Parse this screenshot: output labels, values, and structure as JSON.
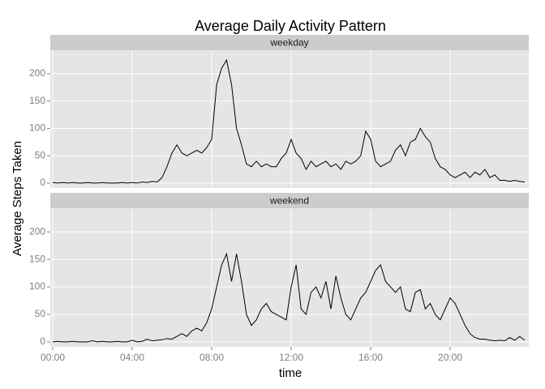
{
  "chart_data": {
    "type": "line",
    "title": "Average Daily Activity Pattern",
    "x_label": "time",
    "y_label": "Average Steps Taken",
    "facet": true,
    "grid": true,
    "color": "#000000",
    "x": [
      "00:00",
      "00:15",
      "00:30",
      "00:45",
      "01:00",
      "01:15",
      "01:30",
      "01:45",
      "02:00",
      "02:15",
      "02:30",
      "02:45",
      "03:00",
      "03:15",
      "03:30",
      "03:45",
      "04:00",
      "04:15",
      "04:30",
      "04:45",
      "05:00",
      "05:15",
      "05:30",
      "05:45",
      "06:00",
      "06:15",
      "06:30",
      "06:45",
      "07:00",
      "07:15",
      "07:30",
      "07:45",
      "08:00",
      "08:15",
      "08:30",
      "08:45",
      "09:00",
      "09:15",
      "09:30",
      "09:45",
      "10:00",
      "10:15",
      "10:30",
      "10:45",
      "11:00",
      "11:15",
      "11:30",
      "11:45",
      "12:00",
      "12:15",
      "12:30",
      "12:45",
      "13:00",
      "13:15",
      "13:30",
      "13:45",
      "14:00",
      "14:15",
      "14:30",
      "14:45",
      "15:00",
      "15:15",
      "15:30",
      "15:45",
      "16:00",
      "16:15",
      "16:30",
      "16:45",
      "17:00",
      "17:15",
      "17:30",
      "17:45",
      "18:00",
      "18:15",
      "18:30",
      "18:45",
      "19:00",
      "19:15",
      "19:30",
      "19:45",
      "20:00",
      "20:15",
      "20:30",
      "20:45",
      "21:00",
      "21:15",
      "21:30",
      "21:45",
      "22:00",
      "22:15",
      "22:30",
      "22:45",
      "23:00",
      "23:15",
      "23:30",
      "23:45"
    ],
    "xlim": [
      "00:00",
      "23:55"
    ],
    "xticks": [
      "00:00",
      "04:00",
      "08:00",
      "12:00",
      "16:00",
      "20:00"
    ],
    "ylim": [
      -9,
      243
    ],
    "yticks": [
      0,
      50,
      100,
      150,
      200
    ],
    "series": [
      {
        "name": "weekday",
        "values": [
          1,
          0,
          1,
          0,
          1,
          0,
          0,
          1,
          0,
          0,
          1,
          0,
          0,
          0,
          1,
          0,
          1,
          0,
          2,
          1,
          3,
          2,
          10,
          30,
          55,
          70,
          55,
          50,
          55,
          60,
          55,
          65,
          80,
          180,
          210,
          225,
          180,
          100,
          70,
          35,
          30,
          40,
          30,
          35,
          30,
          30,
          45,
          55,
          80,
          55,
          45,
          25,
          40,
          30,
          35,
          40,
          30,
          35,
          25,
          40,
          35,
          40,
          50,
          95,
          80,
          40,
          30,
          35,
          40,
          60,
          70,
          50,
          75,
          80,
          100,
          85,
          75,
          45,
          30,
          25,
          15,
          10,
          15,
          20,
          10,
          20,
          15,
          25,
          10,
          15,
          5,
          5,
          3,
          5,
          3,
          2
        ]
      },
      {
        "name": "weekend",
        "values": [
          0,
          1,
          0,
          0,
          1,
          0,
          0,
          0,
          2,
          0,
          1,
          0,
          0,
          1,
          0,
          0,
          3,
          0,
          1,
          5,
          2,
          3,
          4,
          6,
          5,
          10,
          15,
          10,
          20,
          25,
          20,
          35,
          60,
          100,
          140,
          160,
          110,
          160,
          110,
          50,
          30,
          40,
          60,
          70,
          55,
          50,
          45,
          40,
          100,
          140,
          60,
          50,
          90,
          100,
          80,
          110,
          60,
          120,
          80,
          50,
          40,
          60,
          80,
          90,
          110,
          130,
          140,
          110,
          100,
          90,
          100,
          60,
          55,
          90,
          95,
          60,
          70,
          50,
          40,
          60,
          80,
          70,
          50,
          30,
          15,
          8,
          5,
          5,
          3,
          2,
          3,
          2,
          8,
          3,
          10,
          3
        ]
      }
    ]
  }
}
